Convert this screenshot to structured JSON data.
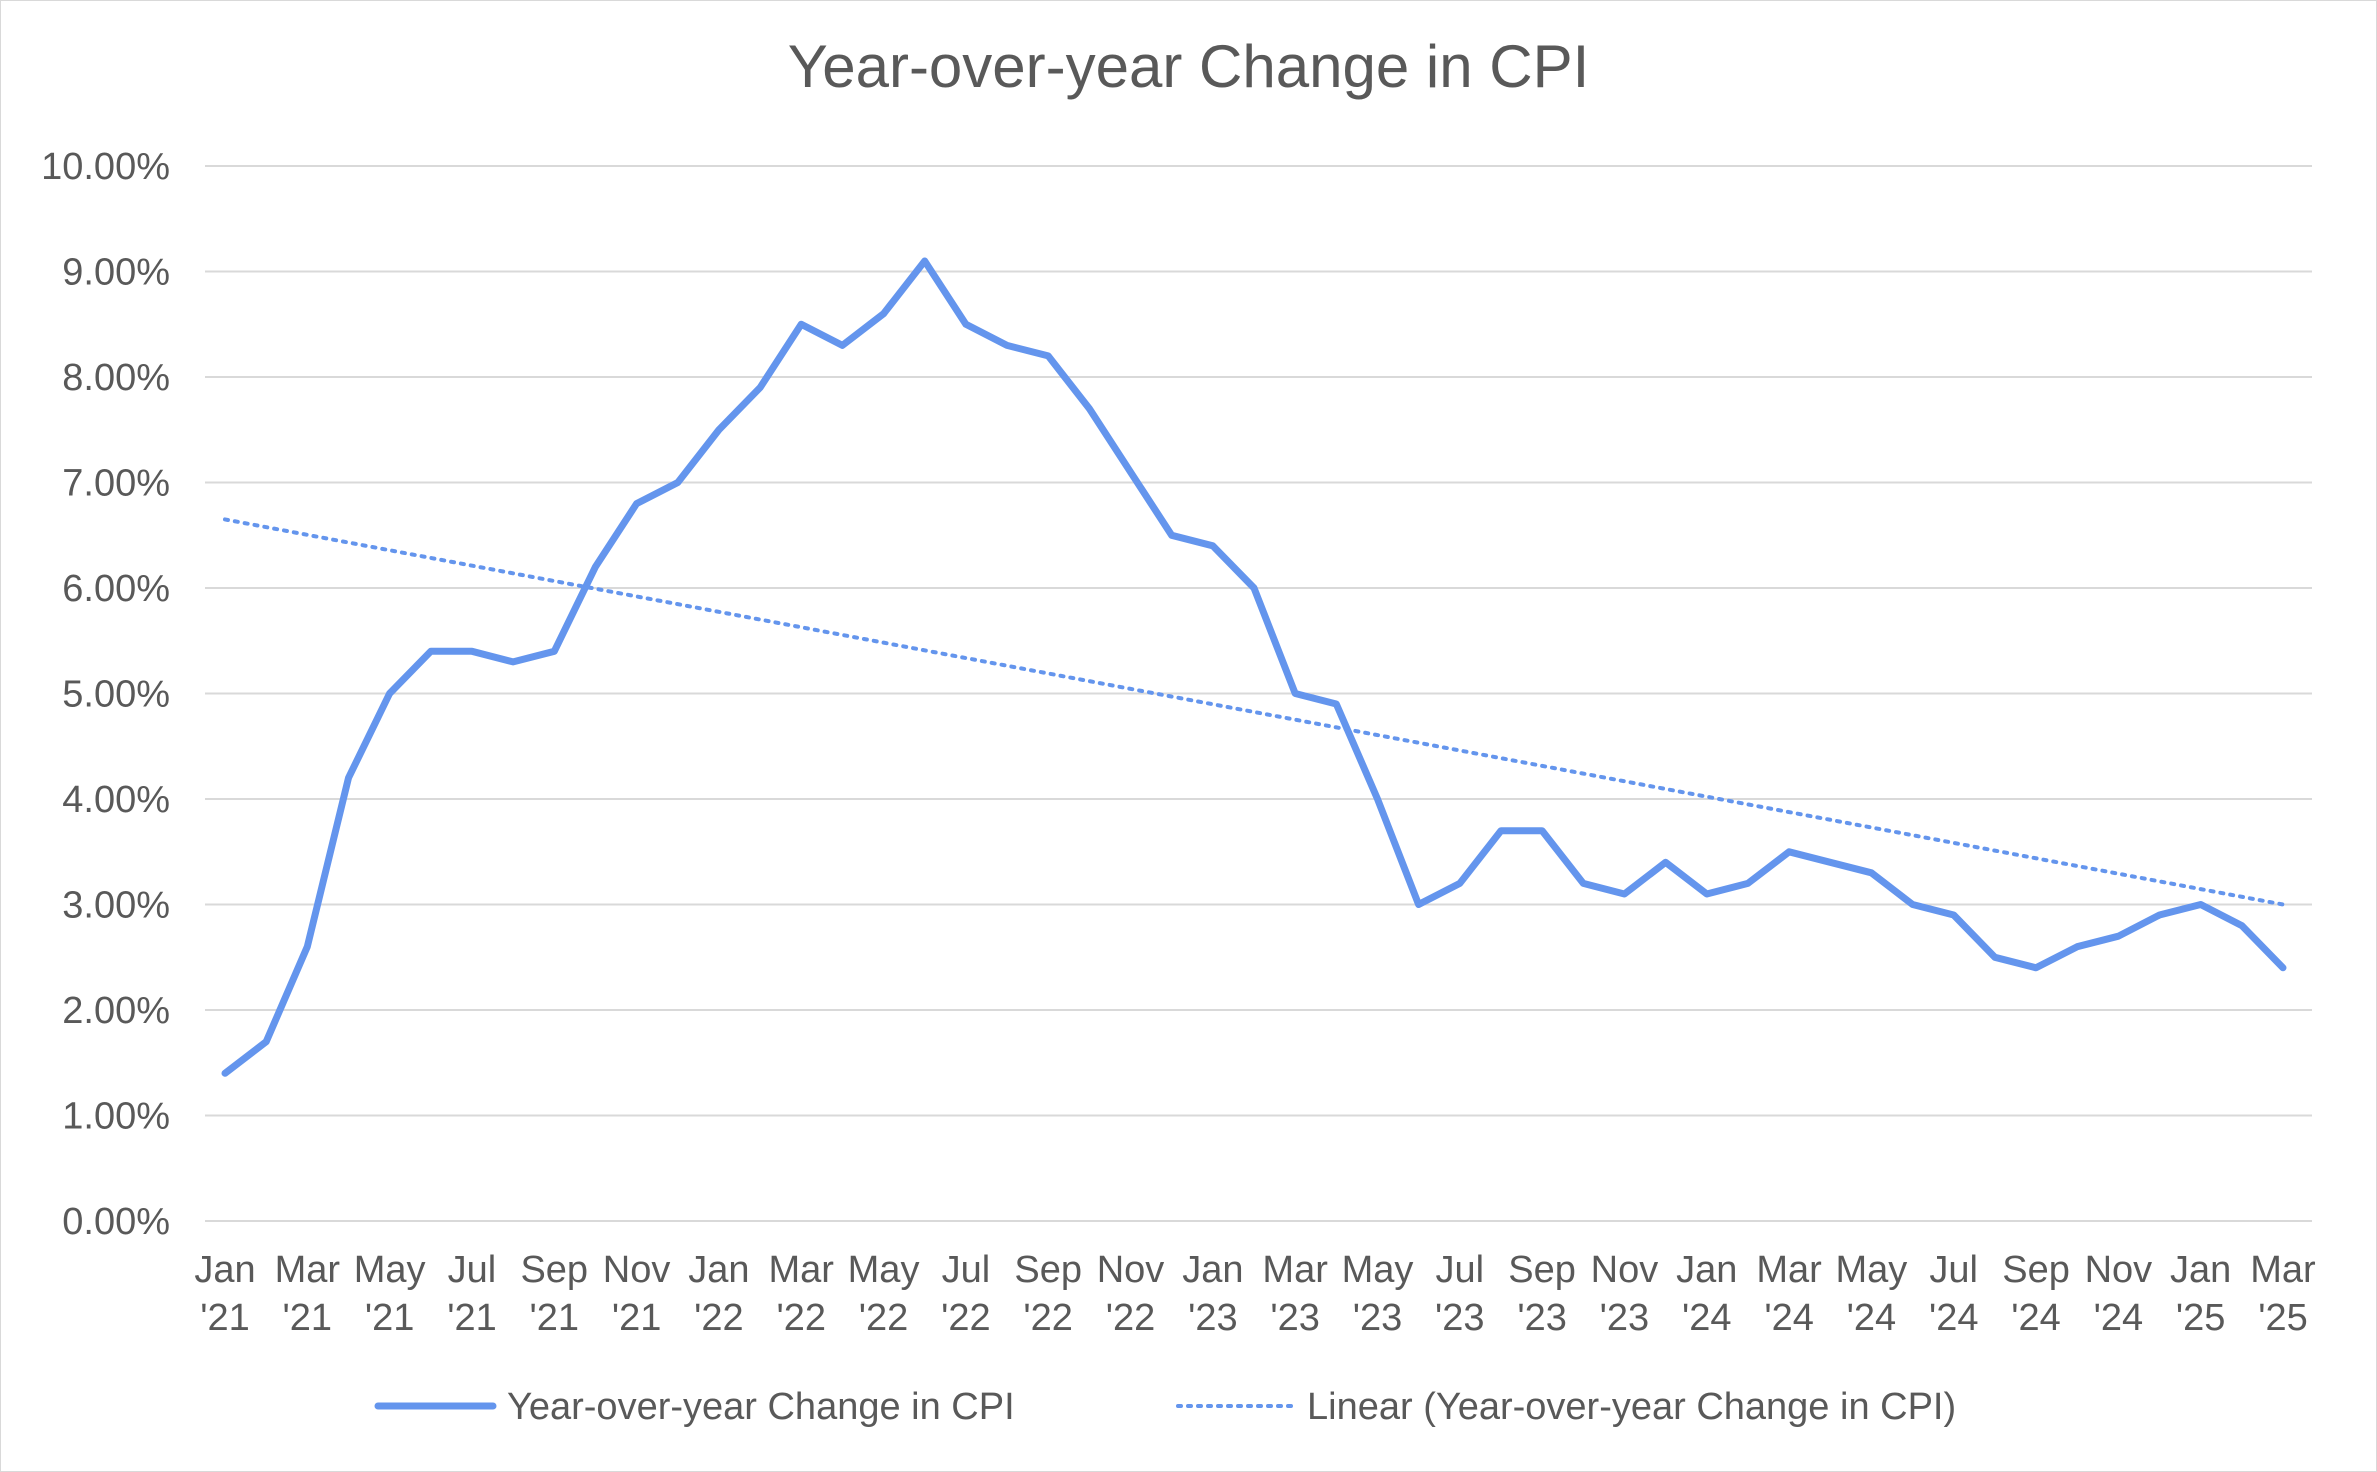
{
  "chart_data": {
    "type": "line",
    "title": "Year-over-year Change in CPI",
    "xlabel": "",
    "ylabel": "",
    "ylim": [
      0,
      0.1
    ],
    "y_ticks": [
      0.0,
      0.01,
      0.02,
      0.03,
      0.04,
      0.05,
      0.06,
      0.07,
      0.08,
      0.09,
      0.1
    ],
    "y_tick_labels": [
      "0.00%",
      "1.00%",
      "2.00%",
      "3.00%",
      "4.00%",
      "5.00%",
      "6.00%",
      "7.00%",
      "8.00%",
      "9.00%",
      "10.00%"
    ],
    "grid": true,
    "legend_position": "bottom",
    "x": [
      "Jan '21",
      "Feb '21",
      "Mar '21",
      "Apr '21",
      "May '21",
      "Jun '21",
      "Jul '21",
      "Aug '21",
      "Sep '21",
      "Oct '21",
      "Nov '21",
      "Dec '21",
      "Jan '22",
      "Feb '22",
      "Mar '22",
      "Apr '22",
      "May '22",
      "Jun '22",
      "Jul '22",
      "Aug '22",
      "Sep '22",
      "Oct '22",
      "Nov '22",
      "Dec '22",
      "Jan '23",
      "Feb '23",
      "Mar '23",
      "Apr '23",
      "May '23",
      "Jun '23",
      "Jul '23",
      "Aug '23",
      "Sep '23",
      "Oct '23",
      "Nov '23",
      "Dec '23",
      "Jan '24",
      "Feb '24",
      "Mar '24",
      "Apr '24",
      "May '24",
      "Jun '24",
      "Jul '24",
      "Aug '24",
      "Sep '24",
      "Oct '24",
      "Nov '24",
      "Dec '24",
      "Jan '25",
      "Feb '25",
      "Mar '25"
    ],
    "x_tick_labels": [
      {
        "month": "Jan",
        "year": "'21",
        "index": 0
      },
      {
        "month": "Mar",
        "year": "'21",
        "index": 2
      },
      {
        "month": "May",
        "year": "'21",
        "index": 4
      },
      {
        "month": "Jul",
        "year": "'21",
        "index": 6
      },
      {
        "month": "Sep",
        "year": "'21",
        "index": 8
      },
      {
        "month": "Nov",
        "year": "'21",
        "index": 10
      },
      {
        "month": "Jan",
        "year": "'22",
        "index": 12
      },
      {
        "month": "Mar",
        "year": "'22",
        "index": 14
      },
      {
        "month": "May",
        "year": "'22",
        "index": 16
      },
      {
        "month": "Jul",
        "year": "'22",
        "index": 18
      },
      {
        "month": "Sep",
        "year": "'22",
        "index": 20
      },
      {
        "month": "Nov",
        "year": "'22",
        "index": 22
      },
      {
        "month": "Jan",
        "year": "'23",
        "index": 24
      },
      {
        "month": "Mar",
        "year": "'23",
        "index": 26
      },
      {
        "month": "May",
        "year": "'23",
        "index": 28
      },
      {
        "month": "Jul",
        "year": "'23",
        "index": 30
      },
      {
        "month": "Sep",
        "year": "'23",
        "index": 32
      },
      {
        "month": "Nov",
        "year": "'23",
        "index": 34
      },
      {
        "month": "Jan",
        "year": "'24",
        "index": 36
      },
      {
        "month": "Mar",
        "year": "'24",
        "index": 38
      },
      {
        "month": "May",
        "year": "'24",
        "index": 40
      },
      {
        "month": "Jul",
        "year": "'24",
        "index": 42
      },
      {
        "month": "Sep",
        "year": "'24",
        "index": 44
      },
      {
        "month": "Nov",
        "year": "'24",
        "index": 46
      },
      {
        "month": "Jan",
        "year": "'25",
        "index": 48
      },
      {
        "month": "Mar",
        "year": "'25",
        "index": 50
      }
    ],
    "series": [
      {
        "name": "Year-over-year Change in CPI",
        "color": "#6495ED",
        "style": "solid",
        "values": [
          0.014,
          0.017,
          0.026,
          0.042,
          0.05,
          0.054,
          0.054,
          0.053,
          0.054,
          0.062,
          0.068,
          0.07,
          0.075,
          0.079,
          0.085,
          0.083,
          0.086,
          0.091,
          0.085,
          0.083,
          0.082,
          0.077,
          0.071,
          0.065,
          0.064,
          0.06,
          0.05,
          0.049,
          0.04,
          0.03,
          0.032,
          0.037,
          0.037,
          0.032,
          0.031,
          0.034,
          0.031,
          0.032,
          0.035,
          0.034,
          0.033,
          0.03,
          0.029,
          0.025,
          0.024,
          0.026,
          0.027,
          0.029,
          0.03,
          0.028,
          0.024
        ]
      },
      {
        "name": "Linear (Year-over-year Change in CPI)",
        "color": "#6495ED",
        "style": "dotted",
        "trendline": "linear",
        "start": 0.0665,
        "end": 0.03
      }
    ]
  }
}
